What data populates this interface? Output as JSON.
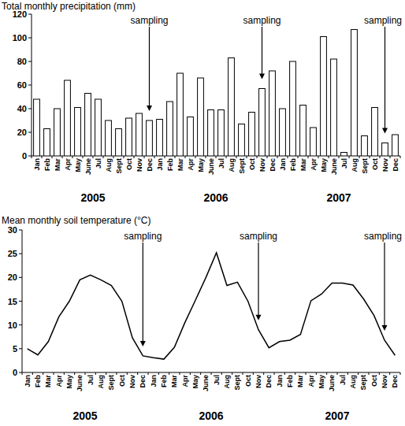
{
  "chart_data": [
    {
      "type": "bar",
      "title": "Total monthly precipitation (mm)",
      "categories": [
        "Jan",
        "Feb",
        "Mar",
        "Apr",
        "May",
        "June",
        "Jul",
        "Aug",
        "Sept",
        "Oct",
        "Nov",
        "Dec",
        "Jan",
        "Feb",
        "Mar",
        "Apr",
        "May",
        "June",
        "Jul",
        "Aug",
        "Sept",
        "Oct",
        "Nov",
        "Dec",
        "Jan",
        "Feb",
        "Mar",
        "Apr",
        "May",
        "June",
        "Jul",
        "Aug",
        "Sept",
        "Oct",
        "Nov",
        "Dec"
      ],
      "values": [
        48,
        23,
        40,
        64,
        41,
        53,
        48,
        30,
        23,
        32,
        36,
        30,
        31,
        46,
        70,
        33,
        66,
        39,
        39,
        83,
        27,
        37,
        57,
        72,
        40,
        80,
        43,
        24,
        101,
        82,
        3,
        107,
        17,
        41,
        11,
        18
      ],
      "color": "#ffffff",
      "ylim": [
        0,
        120
      ],
      "yticks": [
        0,
        20,
        40,
        60,
        80,
        100,
        120
      ],
      "year_labels": [
        "2005",
        "2006",
        "2007"
      ],
      "annotations": [
        {
          "text": "sampling",
          "at": 11
        },
        {
          "text": "sampling",
          "at": 22
        },
        {
          "text": "sampling",
          "at": 34
        }
      ]
    },
    {
      "type": "line",
      "title": "Mean monthly soil temperature (°C)",
      "categories": [
        "Jan",
        "Feb",
        "Mar",
        "Apr",
        "May",
        "June",
        "Jul",
        "Aug",
        "Sept",
        "Oct",
        "Nov",
        "Dec",
        "Jan",
        "Feb",
        "Mar",
        "Apr",
        "May",
        "June",
        "Jul",
        "Aug",
        "Sept",
        "Oct",
        "Nov",
        "Dec",
        "Jan",
        "Feb",
        "Mar",
        "Apr",
        "May",
        "June",
        "Jul",
        "Aug",
        "Sept",
        "Oct",
        "Nov",
        "Dec"
      ],
      "values": [
        5,
        3.7,
        6.5,
        11.7,
        15,
        19.5,
        20.5,
        19.5,
        18.3,
        15,
        7.3,
        3.5,
        3.1,
        2.8,
        5.3,
        10.5,
        15.2,
        20,
        25.2,
        18.3,
        19,
        15,
        9,
        5.2,
        6.5,
        6.8,
        8,
        15.1,
        16.5,
        18.8,
        18.8,
        18.4,
        15.5,
        12,
        6.8,
        3.6
      ],
      "color": "#000000",
      "ylim": [
        0,
        30
      ],
      "yticks": [
        0,
        5,
        10,
        15,
        20,
        25,
        30
      ],
      "year_labels": [
        "2005",
        "2006",
        "2007"
      ],
      "annotations": [
        {
          "text": "sampling",
          "at": 11
        },
        {
          "text": "sampling",
          "at": 22
        },
        {
          "text": "sampling",
          "at": 34
        }
      ]
    }
  ]
}
